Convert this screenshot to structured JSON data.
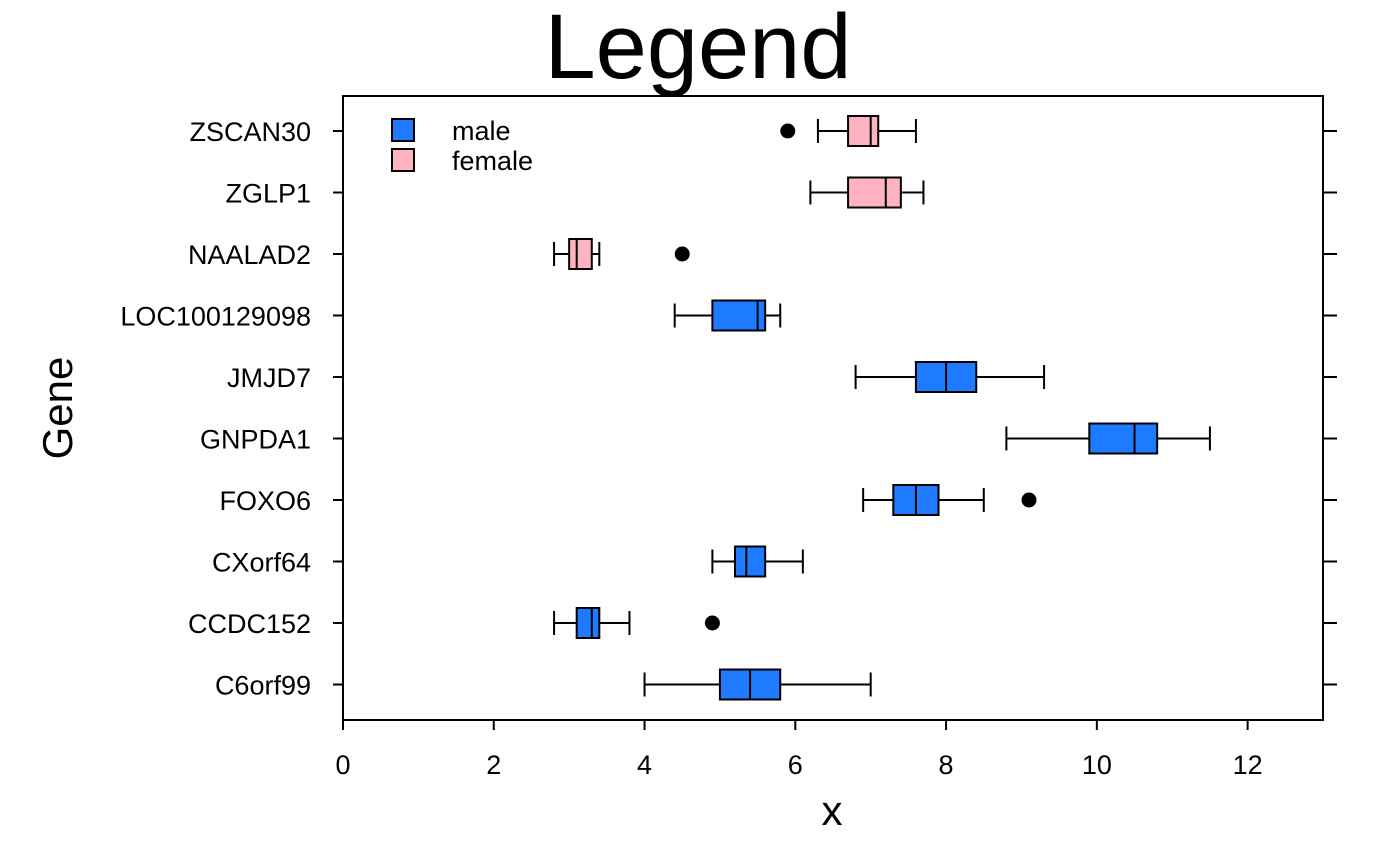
{
  "chart_data": {
    "type": "boxplot",
    "orientation": "horizontal",
    "title": "Legend",
    "xlabel": "x",
    "ylabel": "Gene",
    "xlim": [
      0,
      13
    ],
    "xticks": [
      0,
      2,
      4,
      6,
      8,
      10,
      12
    ],
    "grid": false,
    "legend": {
      "placement": "top-left",
      "entries": [
        {
          "label": "male",
          "color": "#1E7BFF"
        },
        {
          "label": "female",
          "color": "#FFB3C1"
        }
      ]
    },
    "categories": [
      "ZSCAN30",
      "ZGLP1",
      "NAALAD2",
      "LOC100129098",
      "JMJD7",
      "GNPDA1",
      "FOXO6",
      "CXorf64",
      "CCDC152",
      "C6orf99"
    ],
    "boxes": [
      {
        "gene": "ZSCAN30",
        "group": "female",
        "whisker_low": 6.3,
        "q1": 6.7,
        "median": 7.0,
        "q3": 7.1,
        "whisker_high": 7.6,
        "outliers": [
          5.9
        ]
      },
      {
        "gene": "ZGLP1",
        "group": "female",
        "whisker_low": 6.2,
        "q1": 6.7,
        "median": 7.2,
        "q3": 7.4,
        "whisker_high": 7.7,
        "outliers": []
      },
      {
        "gene": "NAALAD2",
        "group": "female",
        "whisker_low": 2.8,
        "q1": 3.0,
        "median": 3.1,
        "q3": 3.3,
        "whisker_high": 3.4,
        "outliers": [
          4.5
        ]
      },
      {
        "gene": "LOC100129098",
        "group": "male",
        "whisker_low": 4.4,
        "q1": 4.9,
        "median": 5.5,
        "q3": 5.6,
        "whisker_high": 5.8,
        "outliers": []
      },
      {
        "gene": "JMJD7",
        "group": "male",
        "whisker_low": 6.8,
        "q1": 7.6,
        "median": 8.0,
        "q3": 8.4,
        "whisker_high": 9.3,
        "outliers": []
      },
      {
        "gene": "GNPDA1",
        "group": "male",
        "whisker_low": 8.8,
        "q1": 9.9,
        "median": 10.5,
        "q3": 10.8,
        "whisker_high": 11.5,
        "outliers": []
      },
      {
        "gene": "FOXO6",
        "group": "male",
        "whisker_low": 6.9,
        "q1": 7.3,
        "median": 7.6,
        "q3": 7.9,
        "whisker_high": 8.5,
        "outliers": [
          9.1
        ]
      },
      {
        "gene": "CXorf64",
        "group": "male",
        "whisker_low": 4.9,
        "q1": 5.2,
        "median": 5.35,
        "q3": 5.6,
        "whisker_high": 6.1,
        "outliers": []
      },
      {
        "gene": "CCDC152",
        "group": "male",
        "whisker_low": 2.8,
        "q1": 3.1,
        "median": 3.3,
        "q3": 3.4,
        "whisker_high": 3.8,
        "outliers": [
          4.9
        ]
      },
      {
        "gene": "C6orf99",
        "group": "male",
        "whisker_low": 4.0,
        "q1": 5.0,
        "median": 5.4,
        "q3": 5.8,
        "whisker_high": 7.0,
        "outliers": []
      }
    ]
  }
}
